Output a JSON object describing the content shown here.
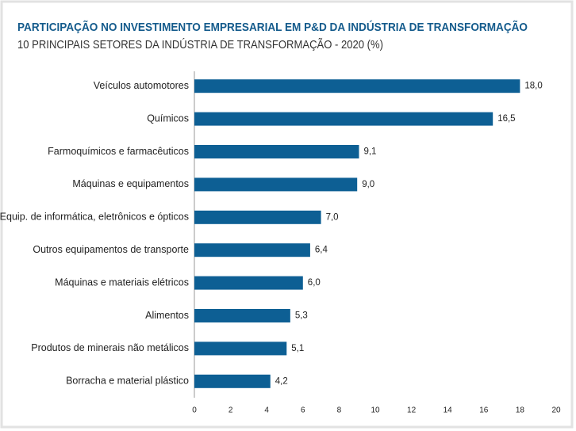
{
  "chart_data": {
    "type": "barh",
    "title": "PARTICIPAÇÃO NO INVESTIMENTO EMPRESARIAL EM P&D DA INDÚSTRIA DE TRANSFORMAÇÃO",
    "subtitle": "10 PRINCIPAIS SETORES DA INDÚSTRIA DE TRANSFORMAÇÃO - 2020 (%)",
    "categories": [
      "Veículos automotores",
      "Químicos",
      "Farmoquímicos e farmacêuticos",
      "Máquinas e equipamentos",
      "Equip. de informática, eletrônicos e ópticos",
      "Outros equipamentos de transporte",
      "Máquinas e materiais elétricos",
      "Alimentos",
      "Produtos de minerais não metálicos",
      "Borracha e material plástico"
    ],
    "values": [
      18.0,
      16.5,
      9.1,
      9.0,
      7.0,
      6.4,
      6.0,
      5.3,
      5.1,
      4.2
    ],
    "value_labels": [
      "18,0",
      "16,5",
      "9,1",
      "9,0",
      "7,0",
      "6,4",
      "6,0",
      "5,3",
      "5,1",
      "4,2"
    ],
    "color": "#0d5f94",
    "xlim": [
      0,
      20
    ],
    "xticks": [
      0,
      2,
      4,
      6,
      8,
      10,
      12,
      14,
      16,
      18,
      20
    ],
    "grid": false
  }
}
